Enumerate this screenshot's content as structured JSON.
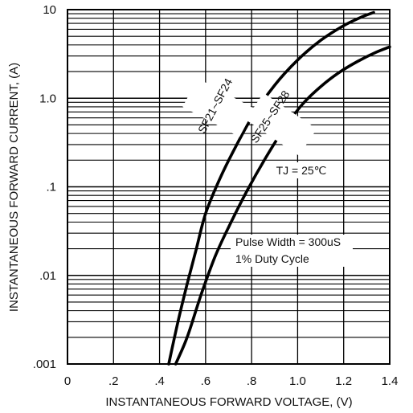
{
  "chart_data": {
    "type": "line",
    "title": "",
    "xlabel": "INSTANTANEOUS FORWARD VOLTAGE, (V)",
    "ylabel": "INSTANTANEOUS FORWARD CURRENT, (A)",
    "xlim": [
      0,
      1.4
    ],
    "ylim": [
      0.001,
      10
    ],
    "yscale": "log",
    "grid": true,
    "x_ticks": [
      {
        "value": 0,
        "label": "0"
      },
      {
        "value": 0.2,
        "label": ".2"
      },
      {
        "value": 0.4,
        "label": ".4"
      },
      {
        "value": 0.6,
        "label": ".6"
      },
      {
        "value": 0.8,
        "label": ".8"
      },
      {
        "value": 1.0,
        "label": "1.0"
      },
      {
        "value": 1.2,
        "label": "1.2"
      },
      {
        "value": 1.4,
        "label": "1.4"
      }
    ],
    "y_ticks": [
      {
        "value": 0.001,
        "label": ".001"
      },
      {
        "value": 0.01,
        "label": ".01"
      },
      {
        "value": 0.1,
        "label": ".1"
      },
      {
        "value": 1,
        "label": "1.0"
      },
      {
        "value": 10,
        "label": "10"
      }
    ],
    "series": [
      {
        "name": "SF21~SF24",
        "x": [
          0.44,
          0.48,
          0.52,
          0.56,
          0.6,
          0.66,
          0.72,
          0.8,
          0.9,
          1.0,
          1.1,
          1.2,
          1.28,
          1.33
        ],
        "values": [
          0.001,
          0.003,
          0.008,
          0.02,
          0.05,
          0.12,
          0.25,
          0.6,
          1.4,
          2.7,
          4.5,
          6.6,
          8.3,
          9.3
        ]
      },
      {
        "name": "SF25~SF28",
        "x": [
          0.47,
          0.52,
          0.58,
          0.64,
          0.7,
          0.78,
          0.86,
          0.94,
          1.02,
          1.1,
          1.18,
          1.26,
          1.34,
          1.4
        ],
        "values": [
          0.001,
          0.002,
          0.006,
          0.016,
          0.035,
          0.09,
          0.21,
          0.45,
          0.85,
          1.35,
          1.95,
          2.6,
          3.3,
          3.8
        ]
      }
    ],
    "annotations": [
      {
        "key": "tj",
        "text": "TJ = 25℃"
      },
      {
        "key": "pulse",
        "text": "Pulse Width = 300uS"
      },
      {
        "key": "duty",
        "text": "1% Duty Cycle"
      }
    ]
  }
}
